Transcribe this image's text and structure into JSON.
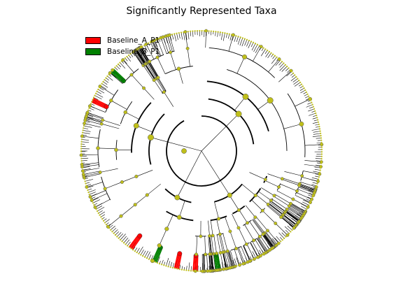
{
  "chart_data": {
    "type": "cladogram",
    "title": "Significantly Represented Taxa",
    "legend": [
      {
        "name": "Baseline_A_P1",
        "color": "#ff0000"
      },
      {
        "name": "Baseline_B_P1",
        "color": "#008000"
      }
    ],
    "legend_placement": "top-left",
    "node_color": "#bfbf1a",
    "enriched_Baseline_A_P1_angles_deg": [
      93,
      102,
      126,
      205
    ],
    "enriched_Baseline_B_P1_angles_deg": [
      82,
      113,
      222
    ],
    "levels": 6,
    "grid": false
  }
}
